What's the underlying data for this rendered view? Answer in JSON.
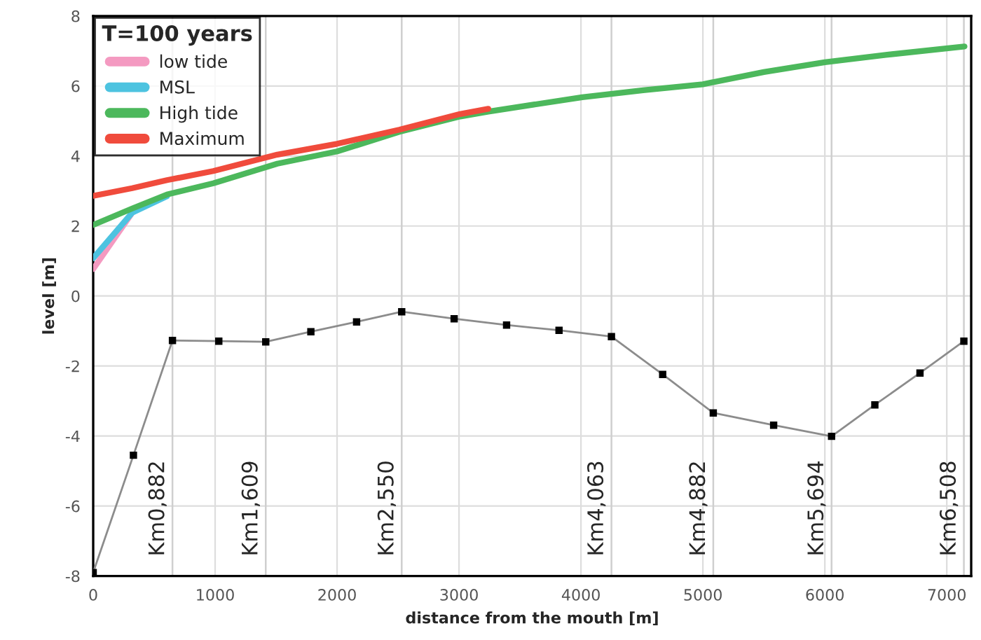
{
  "chart_data": {
    "type": "line",
    "xlabel": "distance from the mouth [m]",
    "ylabel": "level [m]",
    "legend_title": "T=100 years",
    "legend": "top left",
    "grid": true,
    "xlim": [
      0,
      7200
    ],
    "xticks": [
      0,
      1000,
      2000,
      3000,
      4000,
      5000,
      6000,
      7000
    ],
    "ylim": [
      -8,
      8
    ],
    "yticks": [
      -8,
      -6,
      -4,
      -2,
      0,
      2,
      4,
      6,
      8
    ],
    "series": [
      {
        "name": "low tide",
        "color": "#f49ac1",
        "marker": "none",
        "x": [
          0,
          320
        ],
        "values": [
          0.77,
          2.38
        ]
      },
      {
        "name": "MSL",
        "color": "#4dc3e0",
        "marker": "none",
        "x": [
          0,
          320,
          605
        ],
        "values": [
          1.08,
          2.38,
          2.85
        ]
      },
      {
        "name": "High tide",
        "color": "#4cb85c",
        "marker": "none",
        "x": [
          0,
          320,
          605,
          985,
          1510,
          2000,
          2510,
          3010,
          3240,
          4010,
          4510,
          5000,
          5500,
          6000,
          6500,
          7145
        ],
        "values": [
          2.03,
          2.5,
          2.9,
          3.22,
          3.78,
          4.13,
          4.69,
          5.13,
          5.27,
          5.68,
          5.88,
          6.05,
          6.4,
          6.68,
          6.89,
          7.13
        ]
      },
      {
        "name": "Maximum",
        "color": "#f04b3c",
        "marker": "none",
        "x": [
          0,
          320,
          605,
          985,
          1510,
          2000,
          2510,
          3010,
          3240
        ],
        "values": [
          2.86,
          3.08,
          3.31,
          3.57,
          4.04,
          4.35,
          4.75,
          5.2,
          5.35
        ]
      },
      {
        "color": "#8c8c8c",
        "marker": "square",
        "x": [
          0,
          330,
          650,
          1030,
          1415,
          1785,
          2160,
          2530,
          2960,
          3390,
          3820,
          4250,
          4670,
          5085,
          5580,
          6055,
          6410,
          6780,
          7140
        ],
        "values": [
          -7.9,
          -4.55,
          -1.27,
          -1.29,
          -1.31,
          -1.02,
          -0.74,
          -0.45,
          -0.65,
          -0.83,
          -0.98,
          -1.16,
          -2.24,
          -3.34,
          -3.69,
          -4.01,
          -3.11,
          -2.2,
          -1.29
        ]
      }
    ],
    "ref_lines": [
      {
        "axis": "x",
        "value": 650,
        "label": "Km0,882"
      },
      {
        "axis": "x",
        "value": 1415,
        "label": "Km1,609"
      },
      {
        "axis": "x",
        "value": 2530,
        "label": "Km2,550"
      },
      {
        "axis": "x",
        "value": 4250,
        "label": "Km4,063"
      },
      {
        "axis": "x",
        "value": 5085,
        "label": "Km4,882"
      },
      {
        "axis": "x",
        "value": 6055,
        "label": "Km5,694"
      },
      {
        "axis": "x",
        "value": 7140,
        "label": "Km6,508"
      }
    ]
  }
}
